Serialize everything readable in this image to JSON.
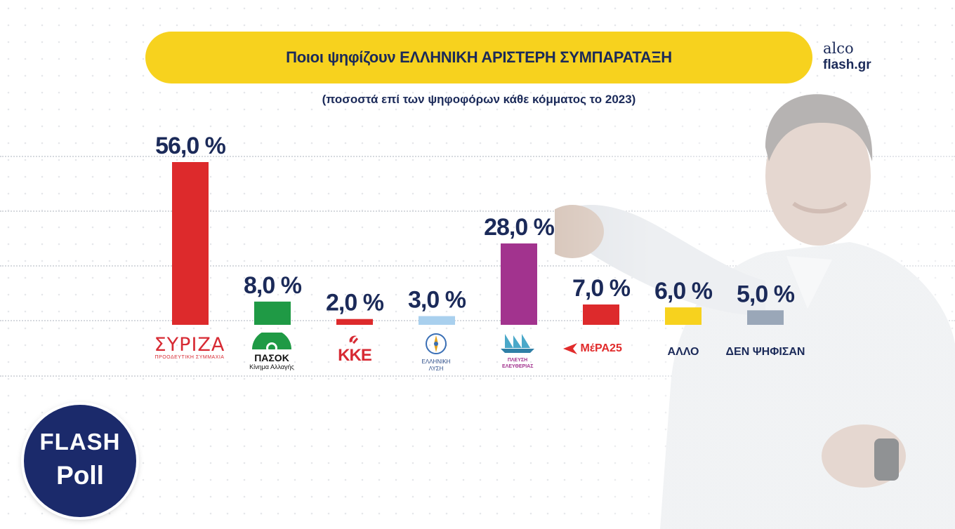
{
  "header": {
    "title": "Ποιοι ψηφίζουν ΕΛΛΗΝΙΚΗ ΑΡΙΣΤΕΡΗ ΣΥΜΠΑΡΑΤΑΞΗ",
    "subtitle": "(ποσοστά επί των ψηφοφόρων κάθε κόμματος το 2023)"
  },
  "brand": {
    "line1": "alco",
    "line2": "flash.gr"
  },
  "badge": {
    "line1": "FLASH",
    "line2": "Poll"
  },
  "logos": {
    "syriza": {
      "name": "ΣΥΡΙΖΑ",
      "sub": "ΠΡΟΟΔΕΥΤΙΚΗ ΣΥΜΜΑΧΙΑ"
    },
    "pasok": {
      "name": "ΠΑΣΟΚ",
      "sub": "Κίνημα Αλλαγής"
    },
    "kke": {
      "name": "ΚΚΕ"
    },
    "elliniki_lysi": {
      "name": "ΕΛΛΗΝΙΚΗ ΛΥΣΗ"
    },
    "plefsi": {
      "name": "ΠΛΕΥΣΗ ΕΛΕΥΘΕΡΙΑΣ"
    },
    "mera25": {
      "name": "ΜέΡΑ25"
    }
  },
  "colors": {
    "title_bg": "#f7d21e",
    "text": "#1b2a59"
  },
  "chart_data": {
    "type": "bar",
    "categories": [
      "ΣΥΡΙΖΑ",
      "ΠΑΣΟΚ",
      "ΚΚΕ",
      "ΕΛΛΗΝΙΚΗ ΛΥΣΗ",
      "ΠΛΕΥΣΗ ΕΛΕΥΘΕΡΙΑΣ",
      "ΜέΡΑ25",
      "ΑΛΛΟ",
      "ΔΕΝ ΨΗΦΙΣΑΝ"
    ],
    "values": [
      56.0,
      8.0,
      2.0,
      3.0,
      28.0,
      7.0,
      6.0,
      5.0
    ],
    "value_labels": [
      "56,0 %",
      "8,0 %",
      "2,0 %",
      "3,0 %",
      "28,0 %",
      "7,0 %",
      "6,0 %",
      "5,0 %"
    ],
    "colors": [
      "#dd2a2c",
      "#1f9a45",
      "#dd2a2c",
      "#a9d0ee",
      "#a2338e",
      "#dd2a2c",
      "#f7d21e",
      "#9aa7b8"
    ],
    "category_labels": [
      "",
      "",
      "",
      "",
      "",
      "",
      "ΑΛΛΟ",
      "ΔΕΝ ΨΗΦΙΣΑΝ"
    ],
    "unit": "%"
  }
}
